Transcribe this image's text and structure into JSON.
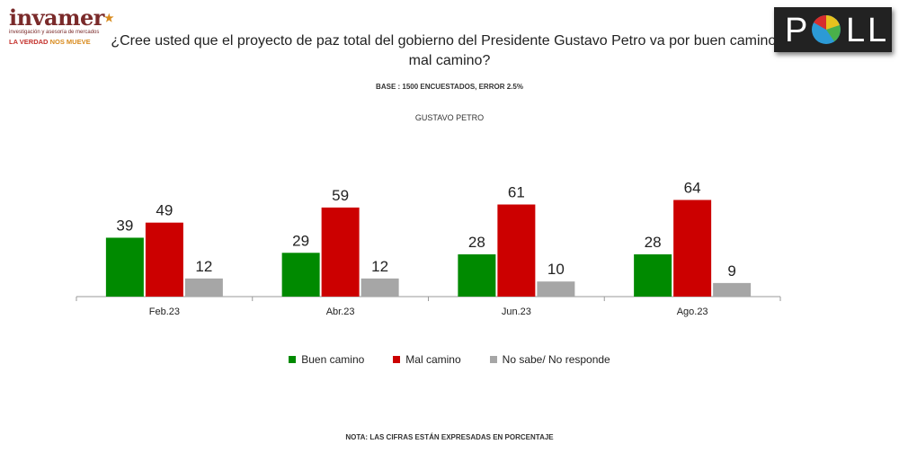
{
  "brand": {
    "name": "invamer",
    "tagline": "investigación y asesoría de mercados",
    "slogan_a": "LA VERDAD",
    "slogan_b": "NOS MUEVE"
  },
  "poll_logo": {
    "letters": [
      "P",
      "L",
      "L"
    ]
  },
  "question": "¿Cree usted que el proyecto de paz total del gobierno del Presidente Gustavo Petro va por buen camino o mal camino?",
  "base": "BASE : 1500 ENCUESTADOS, ERROR 2.5%",
  "subject": "GUSTAVO PETRO",
  "note": "NOTA: LAS CIFRAS ESTÁN EXPRESADAS EN PORCENTAJE",
  "colors": {
    "buen": "#008a00",
    "mal": "#cc0000",
    "nosabe": "#a6a6a6"
  },
  "chart_data": {
    "type": "bar",
    "categories": [
      "Feb.23",
      "Abr.23",
      "Jun.23",
      "Ago.23"
    ],
    "series": [
      {
        "name": "Buen camino",
        "values": [
          39,
          29,
          28,
          28
        ]
      },
      {
        "name": "Mal camino",
        "values": [
          49,
          59,
          61,
          64
        ]
      },
      {
        "name": "No sabe/ No responde",
        "values": [
          12,
          12,
          10,
          9
        ]
      }
    ],
    "ylim": [
      0,
      100
    ],
    "grid": false,
    "legend": "bottom",
    "data_labels": true
  }
}
